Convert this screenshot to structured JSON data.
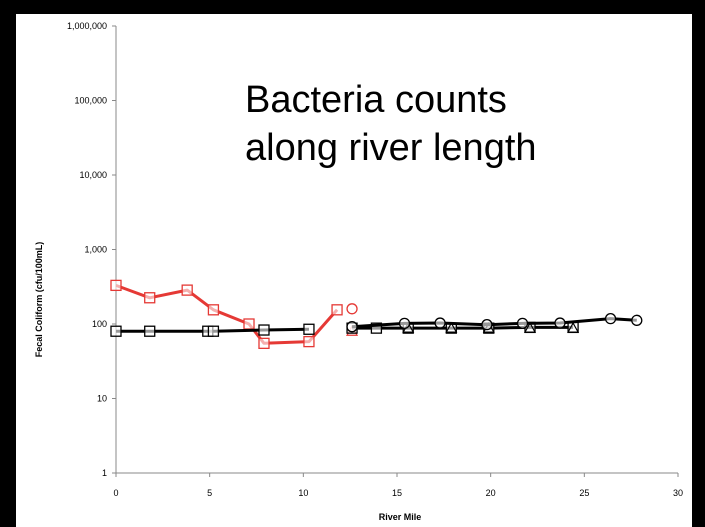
{
  "chart_data": {
    "type": "line",
    "title": "Bacteria counts\nalong river length",
    "xlabel": "River Mile",
    "ylabel": "Fecal Coliform (cfu/100mL)",
    "xlim": [
      0,
      30
    ],
    "ylim": [
      1,
      1000000
    ],
    "yscale": "log",
    "grid": false,
    "x_ticks": [
      0,
      5,
      10,
      15,
      20,
      25,
      30
    ],
    "x_tick_labels": [
      "0",
      "5",
      "10",
      "15",
      "20",
      "25",
      "30"
    ],
    "y_ticks": [
      1,
      10,
      100,
      1000,
      10000,
      100000,
      1000000
    ],
    "y_tick_labels": [
      "1",
      "10",
      "100",
      "1,000",
      "10,000",
      "100,000",
      "1,000,000"
    ],
    "series": [
      {
        "color": "#e53935",
        "marker": "square",
        "line": true,
        "points": [
          [
            0,
            330
          ],
          [
            1.8,
            225
          ],
          [
            3.8,
            285
          ],
          [
            5.2,
            155
          ],
          [
            7.1,
            100
          ],
          [
            7.9,
            55
          ],
          [
            10.3,
            58
          ],
          [
            11.8,
            155
          ]
        ]
      },
      {
        "color": "#000000",
        "marker": "square",
        "line": true,
        "points": [
          [
            0,
            80
          ],
          [
            1.8,
            80
          ],
          [
            4.9,
            80
          ],
          [
            5.2,
            80
          ],
          [
            7.9,
            83
          ],
          [
            10.3,
            85
          ]
        ]
      },
      {
        "color": "#e53935",
        "marker": "circle",
        "line": false,
        "points": [
          [
            12.6,
            160
          ]
        ]
      },
      {
        "color": "#e53935",
        "marker": "triangle",
        "line": false,
        "points": [
          [
            12.6,
            80
          ]
        ]
      },
      {
        "color": "#000000",
        "marker": "square",
        "line": true,
        "points": [
          [
            12.6,
            88
          ],
          [
            13.9,
            88
          ],
          [
            15.6,
            88
          ],
          [
            17.9,
            88
          ],
          [
            19.9,
            88
          ],
          [
            22.1,
            90
          ],
          [
            24.4,
            90
          ]
        ]
      },
      {
        "color": "#000000",
        "marker": "triangle",
        "line": false,
        "points": [
          [
            15.6,
            88
          ],
          [
            17.9,
            88
          ],
          [
            19.9,
            88
          ],
          [
            22.1,
            88
          ],
          [
            24.4,
            88
          ]
        ]
      },
      {
        "color": "#000000",
        "marker": "circle",
        "line": true,
        "points": [
          [
            12.6,
            92
          ],
          [
            15.4,
            102
          ],
          [
            17.3,
            103
          ],
          [
            19.8,
            98
          ],
          [
            21.7,
            102
          ],
          [
            23.7,
            103
          ],
          [
            26.4,
            118
          ],
          [
            27.8,
            112
          ]
        ]
      }
    ]
  }
}
